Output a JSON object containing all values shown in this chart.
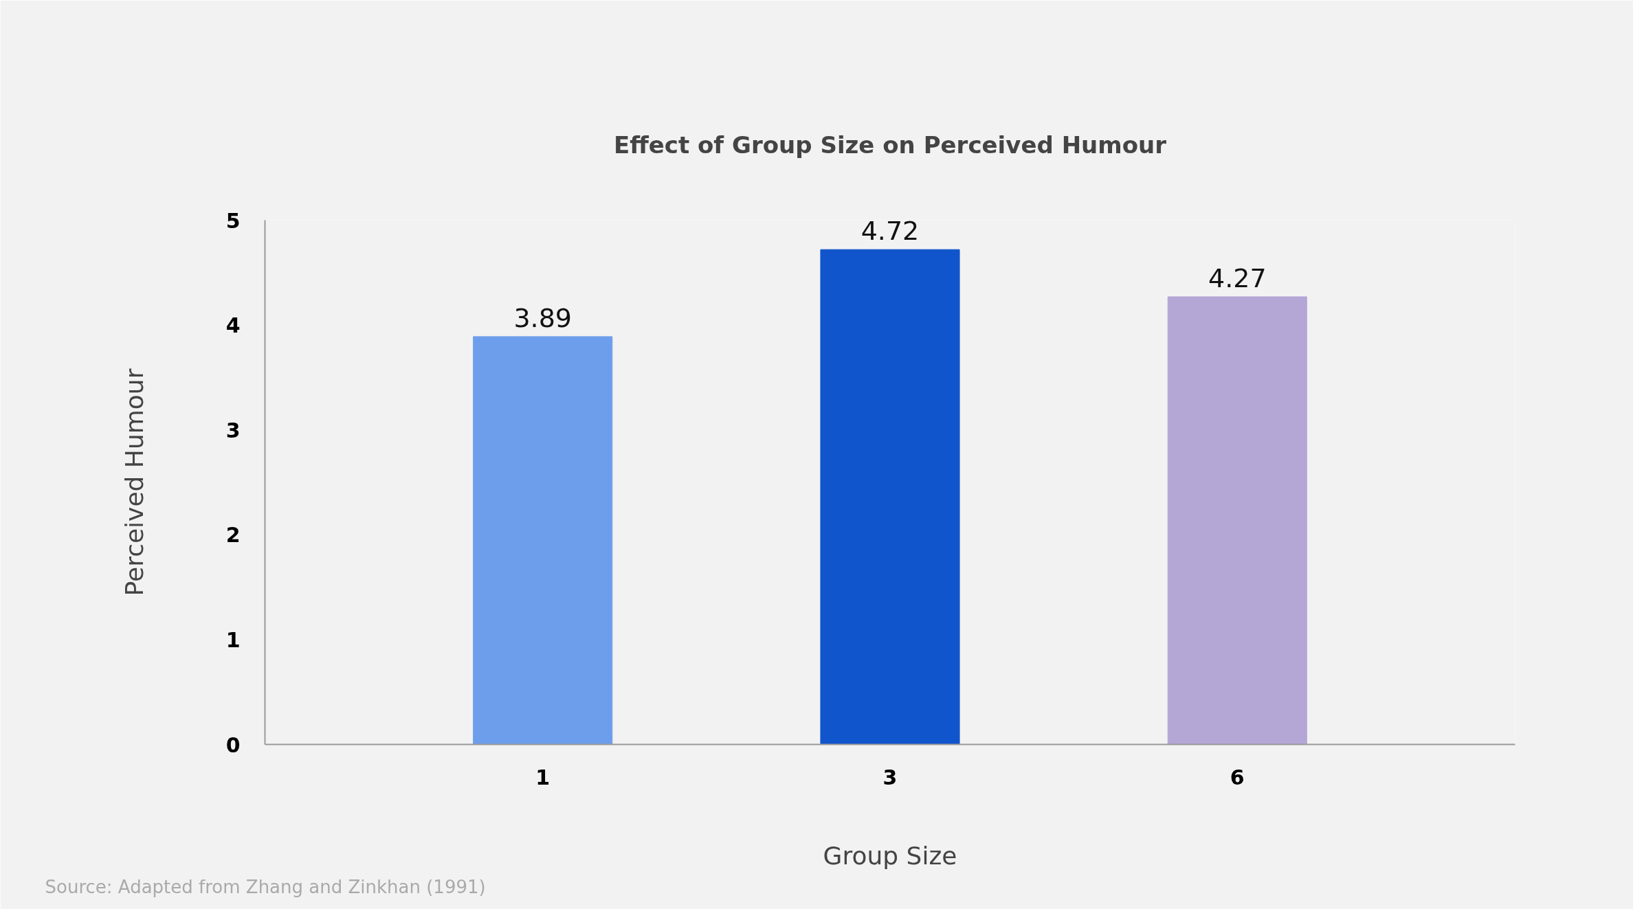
{
  "chart_data": {
    "type": "bar",
    "title": "Effect of Group Size on Perceived Humour",
    "xlabel": "Group Size",
    "ylabel": "Perceived Humour",
    "categories": [
      "1",
      "3",
      "6"
    ],
    "values": [
      3.89,
      4.72,
      4.27
    ],
    "colors": [
      "#6d9eeb",
      "#1155cc",
      "#b4a7d6"
    ],
    "ylim": [
      0,
      5
    ],
    "yticks": [
      0,
      1,
      2,
      3,
      4,
      5
    ],
    "grid": false,
    "data_labels": true,
    "annotations": [
      "Source: Adapted from Zhang and Zinkhan (1991)"
    ]
  }
}
